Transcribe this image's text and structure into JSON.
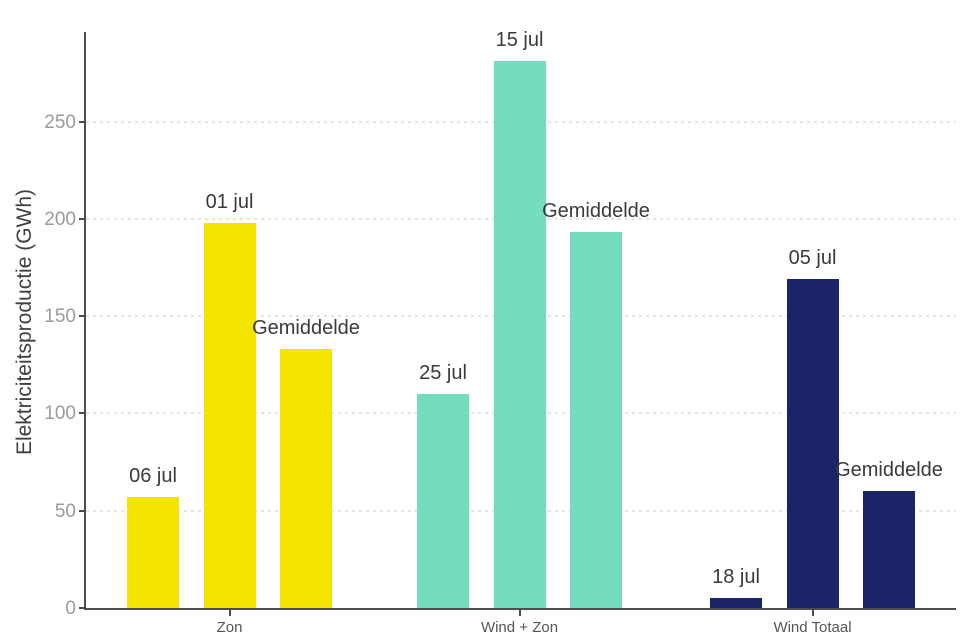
{
  "chart_data": {
    "type": "bar",
    "title": "",
    "xlabel": "",
    "ylabel": "Elektriciteitsproductie (GWh)",
    "ylim": [
      0,
      296
    ],
    "yticks": [
      0,
      50,
      100,
      150,
      200,
      250
    ],
    "grid": "horizontal-dashed",
    "legend": "none",
    "unit": "GWh",
    "groups": [
      {
        "category": "Zon",
        "color": "#f4e500",
        "bars": [
          {
            "label": "06 jul",
            "value": 57
          },
          {
            "label": "01 jul",
            "value": 198
          },
          {
            "label": "Gemiddelde",
            "value": 133
          }
        ]
      },
      {
        "category": "Wind + Zon",
        "color": "#74dcbf",
        "bars": [
          {
            "label": "25 jul",
            "value": 110
          },
          {
            "label": "15 jul",
            "value": 281
          },
          {
            "label": "Gemiddelde",
            "value": 193
          }
        ]
      },
      {
        "category": "Wind Totaal",
        "color": "#1a2466",
        "bars": [
          {
            "label": "18 jul",
            "value": 5
          },
          {
            "label": "05 jul",
            "value": 169
          },
          {
            "label": "Gemiddelde",
            "value": 60
          }
        ]
      }
    ],
    "colors": {
      "axis": "#4b4b4b",
      "grid": "#e4e4e4",
      "tick_label": "#9b9b9b",
      "bar_label": "#3a3a3a",
      "category_label": "#555555",
      "background": "#ffffff"
    }
  }
}
